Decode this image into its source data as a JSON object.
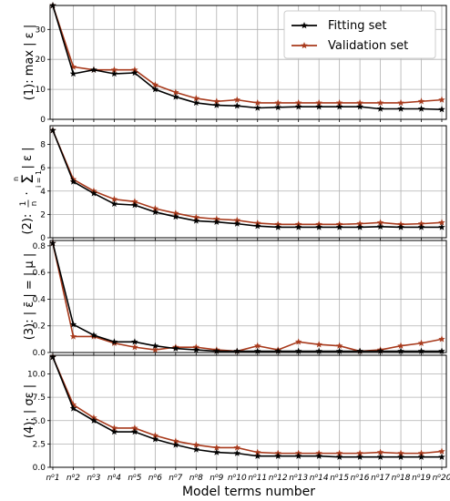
{
  "figure": {
    "xlabel": "Model terms number",
    "legend": {
      "placement": "top-right",
      "entries": [
        "Fitting set",
        "Validation set"
      ]
    },
    "colors": {
      "fitting": "#000000",
      "validation": "#a83a1c",
      "grid": "#b0b0b0"
    }
  },
  "chart_data": [
    {
      "type": "line",
      "ylabel": "(1): max | ε |",
      "categories": [
        "nº1",
        "nº2",
        "nº3",
        "nº4",
        "nº5",
        "nº6",
        "nº7",
        "nº8",
        "nº9",
        "nº10",
        "nº11",
        "nº12",
        "nº13",
        "nº14",
        "nº15",
        "nº16",
        "nº17",
        "nº18",
        "nº19",
        "nº20"
      ],
      "ylim": [
        0,
        38
      ],
      "yticks": [
        0,
        10,
        20,
        30
      ],
      "grid": true,
      "series": [
        {
          "name": "Fitting set",
          "values": [
            38,
            15.2,
            16.5,
            15.2,
            15.5,
            10,
            7.5,
            5.5,
            4.7,
            4.5,
            3.8,
            4,
            4.2,
            4.2,
            4.2,
            4.2,
            3.5,
            3.5,
            3.5,
            3.3
          ]
        },
        {
          "name": "Validation set",
          "values": [
            38,
            17.5,
            16.5,
            16.5,
            16.5,
            11.5,
            9,
            7,
            6,
            6.5,
            5.5,
            5.5,
            5.5,
            5.5,
            5.5,
            5.5,
            5.5,
            5.5,
            6,
            6.5
          ]
        }
      ]
    },
    {
      "type": "line",
      "ylabel": "(2): 1/n · Σ | ε |",
      "ylabel_parts": {
        "prefix": "(2):",
        "frac_num": "1",
        "frac_den": "n",
        "sum_top": "n",
        "sum_bottom": "i = 1",
        "sum_symbol": "Σ",
        "suffix": "| ε |"
      },
      "categories": [
        "nº1",
        "nº2",
        "nº3",
        "nº4",
        "nº5",
        "nº6",
        "nº7",
        "nº8",
        "nº9",
        "nº10",
        "nº11",
        "nº12",
        "nº13",
        "nº14",
        "nº15",
        "nº16",
        "nº17",
        "nº18",
        "nº19",
        "nº20"
      ],
      "ylim": [
        0,
        9.6
      ],
      "yticks": [
        0,
        2,
        4,
        6,
        8
      ],
      "grid": true,
      "series": [
        {
          "name": "Fitting set",
          "values": [
            9.2,
            4.8,
            3.8,
            2.9,
            2.8,
            2.2,
            1.8,
            1.45,
            1.35,
            1.2,
            1.0,
            0.9,
            0.9,
            0.9,
            0.9,
            0.9,
            0.95,
            0.9,
            0.9,
            0.9
          ]
        },
        {
          "name": "Validation set",
          "values": [
            9.2,
            5.0,
            4.0,
            3.3,
            3.1,
            2.5,
            2.1,
            1.75,
            1.6,
            1.5,
            1.25,
            1.15,
            1.15,
            1.15,
            1.15,
            1.2,
            1.3,
            1.15,
            1.2,
            1.3
          ]
        }
      ]
    },
    {
      "type": "line",
      "ylabel": "(3): | ε̄ | = | μ |",
      "categories": [
        "nº1",
        "nº2",
        "nº3",
        "nº4",
        "nº5",
        "nº6",
        "nº7",
        "nº8",
        "nº9",
        "nº10",
        "nº11",
        "nº12",
        "nº13",
        "nº14",
        "nº15",
        "nº16",
        "nº17",
        "nº18",
        "nº19",
        "nº20"
      ],
      "ylim": [
        0,
        0.84
      ],
      "yticks": [
        0.0,
        0.2,
        0.4,
        0.6,
        0.8
      ],
      "ytick_labels": [
        "0.0",
        "0.2",
        "0.4",
        "0.6",
        "0.8"
      ],
      "grid": true,
      "series": [
        {
          "name": "Fitting set",
          "values": [
            0.82,
            0.21,
            0.13,
            0.08,
            0.08,
            0.05,
            0.03,
            0.02,
            0.01,
            0.01,
            0.01,
            0.01,
            0.01,
            0.01,
            0.01,
            0.01,
            0.01,
            0.01,
            0.01,
            0.01
          ]
        },
        {
          "name": "Validation set",
          "values": [
            0.82,
            0.12,
            0.12,
            0.07,
            0.04,
            0.02,
            0.04,
            0.04,
            0.02,
            0.01,
            0.05,
            0.02,
            0.08,
            0.06,
            0.05,
            0.01,
            0.02,
            0.05,
            0.07,
            0.1
          ]
        }
      ]
    },
    {
      "type": "line",
      "ylabel": "(4): | σε |",
      "categories": [
        "nº1",
        "nº2",
        "nº3",
        "nº4",
        "nº5",
        "nº6",
        "nº7",
        "nº8",
        "nº9",
        "nº10",
        "nº11",
        "nº12",
        "nº13",
        "nº14",
        "nº15",
        "nº16",
        "nº17",
        "nº18",
        "nº19",
        "nº20"
      ],
      "ylim": [
        0,
        12
      ],
      "yticks": [
        0.0,
        2.5,
        5.0,
        7.5,
        10.0
      ],
      "ytick_labels": [
        "0.0",
        "2.5",
        "5.0",
        "7.5",
        "10.0"
      ],
      "grid": true,
      "series": [
        {
          "name": "Fitting set",
          "values": [
            11.8,
            6.3,
            5.0,
            3.8,
            3.8,
            3.0,
            2.4,
            1.9,
            1.6,
            1.5,
            1.2,
            1.2,
            1.2,
            1.2,
            1.1,
            1.1,
            1.1,
            1.1,
            1.1,
            1.1
          ]
        },
        {
          "name": "Validation set",
          "values": [
            11.8,
            6.7,
            5.3,
            4.2,
            4.2,
            3.4,
            2.8,
            2.4,
            2.1,
            2.1,
            1.6,
            1.5,
            1.5,
            1.5,
            1.5,
            1.5,
            1.6,
            1.5,
            1.5,
            1.7
          ]
        }
      ]
    }
  ]
}
